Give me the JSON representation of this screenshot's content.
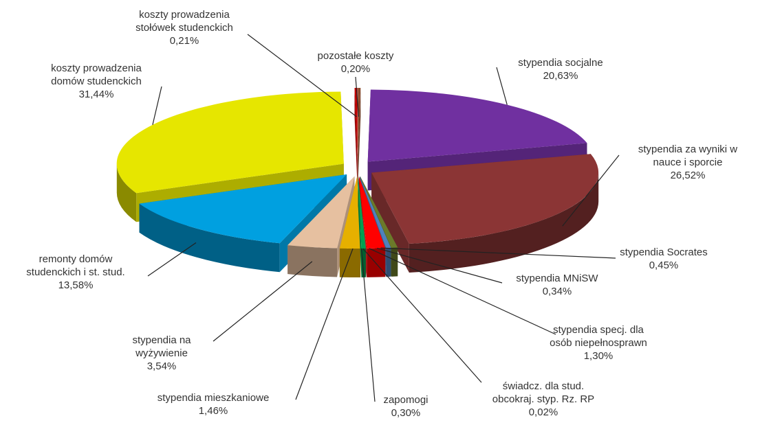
{
  "chart_data": {
    "type": "pie3d",
    "categories": [
      "pozostałe koszty",
      "stypendia socjalne",
      "stypendia za wyniki w\nnauce i sporcie",
      "stypendia Socrates",
      "stypendia MNiSW",
      "stypendia specj. dla\nosób niepełnosprawn",
      "świadcz. dla stud.\nobcokraj. styp. Rz. RP",
      "zapomogi",
      "stypendia mieszkaniowe",
      "stypendia na\nwyżywienie",
      "remonty domów\nstudenckich i st. stud.",
      "koszty prowadzenia\ndomów studenckich",
      "koszty prowadzenia\nstołówek studenckich"
    ],
    "values": [
      0.2,
      20.63,
      26.52,
      0.45,
      0.34,
      1.3,
      0.02,
      0.3,
      1.46,
      3.54,
      13.58,
      31.44,
      0.21
    ],
    "value_labels": [
      "0,20%",
      "20,63%",
      "26,52%",
      "0,45%",
      "0,34%",
      "1,30%",
      "0,02%",
      "0,30%",
      "1,46%",
      "3,54%",
      "13,58%",
      "31,44%",
      "0,21%"
    ],
    "colors": [
      "#8b4a2b",
      "#7030a0",
      "#8b3535",
      "#6b7a2a",
      "#4f81bd",
      "#ff0000",
      "#b05050",
      "#00a050",
      "#e6b000",
      "#e6c0a0",
      "#00a0e0",
      "#e6e600",
      "#c00000"
    ]
  }
}
